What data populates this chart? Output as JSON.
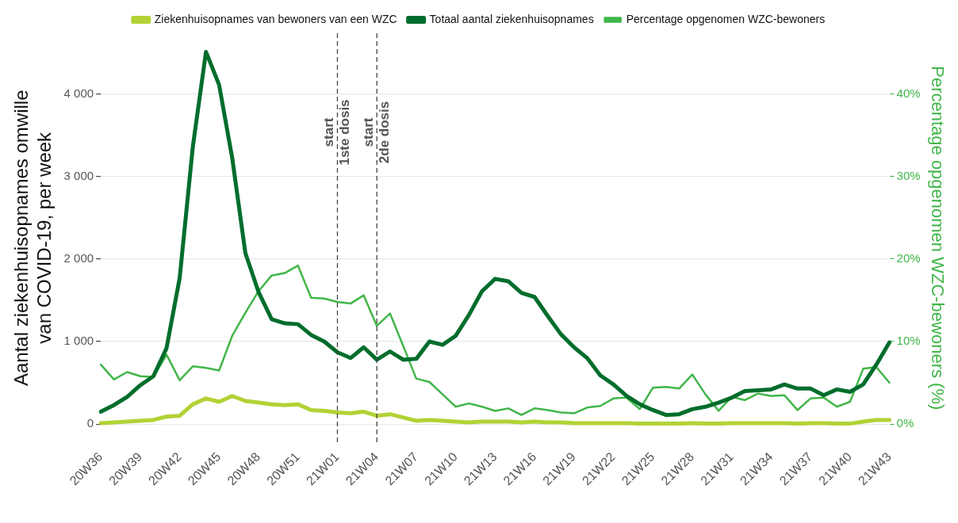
{
  "chart_data": {
    "type": "line",
    "ylabel": "Aantal ziekenhuisopnames omwille\nvan COVID-19, per week",
    "y2label": "Percentage opgenomen WZC-bewoners (%)",
    "categories": [
      "20W36",
      null,
      null,
      "20W39",
      null,
      null,
      "20W42",
      null,
      null,
      "20W45",
      null,
      null,
      "20W48",
      null,
      null,
      "20W51",
      null,
      null,
      "21W01",
      null,
      null,
      "21W04",
      null,
      null,
      "21W07",
      null,
      null,
      "21W10",
      null,
      null,
      "21W13",
      null,
      null,
      "21W16",
      null,
      null,
      "21W19",
      null,
      null,
      "21W22",
      null,
      null,
      "21W25",
      null,
      null,
      "21W28",
      null,
      null,
      "21W31",
      null,
      null,
      "21W34",
      null,
      null,
      "21W37",
      null,
      null,
      "21W40",
      null,
      null,
      "21W43"
    ],
    "series": [
      {
        "name": "Ziekenhuisopnames van bewoners van een WZC",
        "color": "#b2d235",
        "values": [
          10,
          20,
          30,
          40,
          50,
          90,
          100,
          240,
          310,
          270,
          340,
          280,
          260,
          240,
          230,
          240,
          170,
          160,
          140,
          130,
          150,
          100,
          120,
          80,
          40,
          50,
          40,
          30,
          20,
          30,
          30,
          30,
          20,
          30,
          20,
          20,
          10,
          10,
          10,
          10,
          10,
          5,
          5,
          5,
          5,
          10,
          5,
          5,
          10,
          10,
          10,
          10,
          10,
          5,
          10,
          10,
          5,
          5,
          30,
          50,
          50
        ]
      },
      {
        "name": "Totaal aantal ziekenhuisopnames",
        "color": "#006d2c",
        "values": [
          150,
          230,
          330,
          470,
          580,
          920,
          1770,
          3360,
          4510,
          4110,
          3220,
          2070,
          1600,
          1270,
          1220,
          1210,
          1080,
          1000,
          870,
          800,
          930,
          780,
          880,
          780,
          790,
          1000,
          960,
          1070,
          1320,
          1610,
          1760,
          1730,
          1590,
          1540,
          1310,
          1090,
          930,
          800,
          590,
          480,
          340,
          240,
          170,
          110,
          120,
          180,
          210,
          260,
          320,
          400,
          410,
          420,
          480,
          430,
          430,
          350,
          420,
          390,
          480,
          720,
          990
        ]
      },
      {
        "name": "Percentage opgenomen WZC-bewoners",
        "color": "#41b649",
        "axis": "y2",
        "values": [
          7.2,
          5.4,
          6.3,
          5.8,
          5.7,
          8.4,
          5.3,
          7.0,
          6.8,
          6.5,
          10.7,
          13.5,
          16.1,
          18.0,
          18.3,
          19.2,
          15.3,
          15.2,
          14.8,
          14.6,
          15.6,
          11.9,
          13.4,
          9.5,
          5.5,
          5.1,
          3.6,
          2.1,
          2.5,
          2.1,
          1.6,
          1.9,
          1.1,
          1.9,
          1.7,
          1.4,
          1.3,
          2.0,
          2.2,
          3.1,
          3.2,
          1.8,
          4.4,
          4.5,
          4.3,
          6.0,
          3.6,
          1.6,
          3.3,
          2.9,
          3.7,
          3.4,
          3.5,
          1.7,
          3.1,
          3.2,
          2.1,
          2.7,
          6.7,
          6.9,
          5.0
        ]
      }
    ],
    "ylim": [
      -225,
      4735
    ],
    "yticks": [
      0,
      {
        "value": 1000,
        "label": "1 000"
      },
      {
        "value": 2000,
        "label": "2 000"
      },
      {
        "value": 3000,
        "label": "3 000"
      },
      {
        "value": 4000,
        "label": "4 000"
      }
    ],
    "y2lim": [
      -2.25,
      47.35
    ],
    "y2ticks": [
      {
        "value": 0,
        "label": "0%"
      },
      {
        "value": 10,
        "label": "10%"
      },
      {
        "value": 20,
        "label": "20%"
      },
      {
        "value": 30,
        "label": "30%"
      },
      {
        "value": 40,
        "label": "40%"
      }
    ],
    "ref_lines": [
      {
        "axis": "x",
        "value": "21W01",
        "label": "start\n1ste dosis",
        "color": "#444444",
        "line_style": "dashed"
      },
      {
        "axis": "x",
        "value": "21W04",
        "label": "start\n2de dosis",
        "color": "#444444",
        "line_style": "dashed"
      }
    ],
    "grid": "y",
    "legend": "top",
    "marker": "none",
    "line_style": "solid"
  }
}
